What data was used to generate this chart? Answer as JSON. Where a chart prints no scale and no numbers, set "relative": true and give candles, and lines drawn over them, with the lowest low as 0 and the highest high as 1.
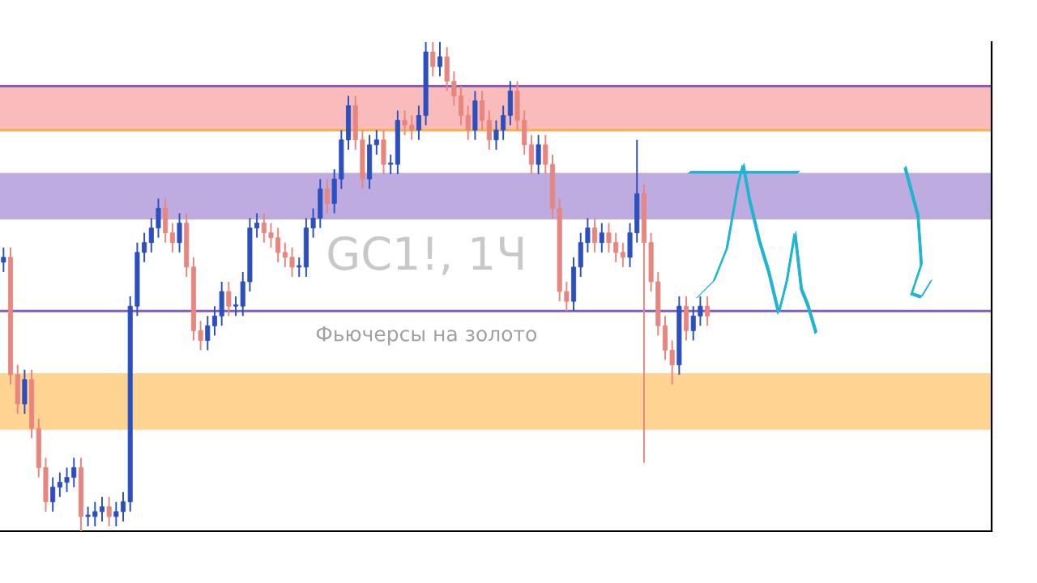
{
  "chart_data": {
    "type": "candlestick",
    "title": "GC1!, 1Ч",
    "subtitle": "Фьючерсы на золото",
    "relative": true,
    "grid": false,
    "legend": false,
    "categories": [
      null,
      null,
      null,
      null,
      null,
      null,
      null,
      null,
      null,
      null,
      null,
      null,
      null,
      null,
      null,
      null,
      null,
      null,
      null,
      null,
      null,
      null,
      null,
      null,
      null,
      null,
      null,
      null,
      null,
      null,
      null,
      null,
      null,
      null,
      null,
      null,
      null,
      null,
      null,
      null,
      null,
      null,
      null,
      null,
      null,
      null,
      null,
      null,
      null,
      null,
      null,
      null,
      null,
      null,
      null,
      null,
      null,
      null,
      null,
      null,
      null,
      null,
      null,
      null,
      null,
      null,
      null,
      null,
      null,
      null,
      null,
      null,
      null,
      null,
      null,
      null,
      null,
      null,
      null,
      null,
      null,
      null,
      null,
      null,
      null,
      null,
      null,
      null,
      null,
      null,
      null,
      null,
      null,
      null,
      null,
      null,
      null,
      null,
      null,
      null,
      null
    ],
    "ohlc": [
      [
        0.55,
        0.58,
        0.53,
        0.56
      ],
      [
        0.56,
        0.58,
        0.3,
        0.32
      ],
      [
        0.32,
        0.34,
        0.24,
        0.26
      ],
      [
        0.26,
        0.33,
        0.24,
        0.31
      ],
      [
        0.31,
        0.33,
        0.19,
        0.21
      ],
      [
        0.21,
        0.23,
        0.11,
        0.13
      ],
      [
        0.13,
        0.15,
        0.04,
        0.06
      ],
      [
        0.06,
        0.11,
        0.04,
        0.09
      ],
      [
        0.09,
        0.12,
        0.07,
        0.1
      ],
      [
        0.1,
        0.13,
        0.08,
        0.11
      ],
      [
        0.11,
        0.15,
        0.09,
        0.13
      ],
      [
        0.13,
        0.15,
        0.0,
        0.03
      ],
      [
        0.03,
        0.05,
        0.01,
        0.03
      ],
      [
        0.03,
        0.06,
        0.01,
        0.04
      ],
      [
        0.04,
        0.07,
        0.02,
        0.05
      ],
      [
        0.05,
        0.07,
        0.01,
        0.03
      ],
      [
        0.03,
        0.06,
        0.01,
        0.04
      ],
      [
        0.04,
        0.08,
        0.02,
        0.06
      ],
      [
        0.06,
        0.48,
        0.04,
        0.46
      ],
      [
        0.46,
        0.59,
        0.44,
        0.57
      ],
      [
        0.57,
        0.61,
        0.55,
        0.59
      ],
      [
        0.59,
        0.64,
        0.57,
        0.62
      ],
      [
        0.62,
        0.68,
        0.6,
        0.66
      ],
      [
        0.66,
        0.68,
        0.59,
        0.61
      ],
      [
        0.61,
        0.63,
        0.57,
        0.59
      ],
      [
        0.59,
        0.65,
        0.57,
        0.63
      ],
      [
        0.63,
        0.65,
        0.52,
        0.54
      ],
      [
        0.54,
        0.56,
        0.39,
        0.41
      ],
      [
        0.41,
        0.43,
        0.37,
        0.39
      ],
      [
        0.39,
        0.44,
        0.37,
        0.42
      ],
      [
        0.42,
        0.46,
        0.4,
        0.44
      ],
      [
        0.44,
        0.51,
        0.42,
        0.49
      ],
      [
        0.49,
        0.51,
        0.44,
        0.46
      ],
      [
        0.46,
        0.48,
        0.44,
        0.46
      ],
      [
        0.46,
        0.53,
        0.44,
        0.51
      ],
      [
        0.51,
        0.64,
        0.49,
        0.62
      ],
      [
        0.62,
        0.65,
        0.6,
        0.63
      ],
      [
        0.63,
        0.65,
        0.59,
        0.61
      ],
      [
        0.61,
        0.63,
        0.58,
        0.6
      ],
      [
        0.6,
        0.62,
        0.55,
        0.57
      ],
      [
        0.57,
        0.59,
        0.54,
        0.56
      ],
      [
        0.56,
        0.58,
        0.52,
        0.54
      ],
      [
        0.54,
        0.56,
        0.52,
        0.54
      ],
      [
        0.54,
        0.64,
        0.52,
        0.62
      ],
      [
        0.62,
        0.66,
        0.6,
        0.64
      ],
      [
        0.64,
        0.72,
        0.62,
        0.7
      ],
      [
        0.7,
        0.72,
        0.65,
        0.67
      ],
      [
        0.67,
        0.74,
        0.65,
        0.72
      ],
      [
        0.72,
        0.82,
        0.7,
        0.8
      ],
      [
        0.8,
        0.89,
        0.78,
        0.87
      ],
      [
        0.87,
        0.89,
        0.78,
        0.8
      ],
      [
        0.8,
        0.82,
        0.7,
        0.72
      ],
      [
        0.72,
        0.81,
        0.7,
        0.79
      ],
      [
        0.79,
        0.82,
        0.77,
        0.8
      ],
      [
        0.8,
        0.82,
        0.73,
        0.75
      ],
      [
        0.75,
        0.77,
        0.73,
        0.75
      ],
      [
        0.75,
        0.86,
        0.73,
        0.84
      ],
      [
        0.84,
        0.86,
        0.81,
        0.83
      ],
      [
        0.83,
        0.85,
        0.8,
        0.82
      ],
      [
        0.82,
        0.87,
        0.8,
        0.85
      ],
      [
        0.85,
        1.0,
        0.83,
        0.98
      ],
      [
        0.98,
        1.0,
        0.93,
        0.95
      ],
      [
        0.95,
        1.0,
        0.93,
        0.97
      ],
      [
        0.97,
        0.99,
        0.9,
        0.92
      ],
      [
        0.92,
        0.94,
        0.87,
        0.89
      ],
      [
        0.89,
        0.91,
        0.83,
        0.85
      ],
      [
        0.85,
        0.87,
        0.8,
        0.82
      ],
      [
        0.82,
        0.9,
        0.8,
        0.88
      ],
      [
        0.88,
        0.9,
        0.82,
        0.84
      ],
      [
        0.84,
        0.86,
        0.78,
        0.8
      ],
      [
        0.8,
        0.84,
        0.78,
        0.82
      ],
      [
        0.82,
        0.87,
        0.8,
        0.85
      ],
      [
        0.85,
        0.92,
        0.83,
        0.9
      ],
      [
        0.9,
        0.92,
        0.82,
        0.84
      ],
      [
        0.84,
        0.86,
        0.77,
        0.79
      ],
      [
        0.79,
        0.81,
        0.73,
        0.75
      ],
      [
        0.75,
        0.81,
        0.73,
        0.79
      ],
      [
        0.79,
        0.81,
        0.73,
        0.75
      ],
      [
        0.75,
        0.77,
        0.64,
        0.66
      ],
      [
        0.66,
        0.68,
        0.47,
        0.49
      ],
      [
        0.49,
        0.51,
        0.45,
        0.47
      ],
      [
        0.47,
        0.56,
        0.45,
        0.54
      ],
      [
        0.54,
        0.61,
        0.52,
        0.59
      ],
      [
        0.59,
        0.64,
        0.57,
        0.62
      ],
      [
        0.62,
        0.64,
        0.57,
        0.59
      ],
      [
        0.59,
        0.63,
        0.57,
        0.61
      ],
      [
        0.61,
        0.63,
        0.57,
        0.59
      ],
      [
        0.59,
        0.61,
        0.55,
        0.57
      ],
      [
        0.57,
        0.59,
        0.54,
        0.56
      ],
      [
        0.56,
        0.63,
        0.54,
        0.61
      ],
      [
        0.61,
        0.8,
        0.59,
        0.69
      ],
      [
        0.69,
        0.71,
        0.14,
        0.59
      ],
      [
        0.59,
        0.61,
        0.49,
        0.51
      ],
      [
        0.51,
        0.53,
        0.4,
        0.42
      ],
      [
        0.42,
        0.44,
        0.35,
        0.37
      ],
      [
        0.37,
        0.39,
        0.3,
        0.34
      ],
      [
        0.34,
        0.48,
        0.32,
        0.46
      ],
      [
        0.46,
        0.48,
        0.39,
        0.41
      ],
      [
        0.41,
        0.46,
        0.39,
        0.44
      ],
      [
        0.44,
        0.48,
        0.42,
        0.46
      ],
      [
        0.46,
        0.48,
        0.42,
        0.44
      ]
    ],
    "bands": [
      {
        "axis": "y",
        "from": 0.21,
        "to": 0.32,
        "color": "#ffcc80"
      },
      {
        "axis": "y",
        "from": 0.64,
        "to": 0.73,
        "color": "#b39ddb"
      },
      {
        "axis": "y",
        "from": 0.82,
        "to": 0.91,
        "color": "#f8b0b0"
      }
    ],
    "ref_lines": [
      {
        "axis": "y",
        "value": 0.45,
        "color": "#7e57c2",
        "line_style": "solid"
      },
      {
        "axis": "y",
        "value": 0.82,
        "color": "#f5b342",
        "line_style": "solid"
      },
      {
        "axis": "y",
        "value": 0.91,
        "color": "#7e57c2",
        "line_style": "solid"
      }
    ]
  }
}
